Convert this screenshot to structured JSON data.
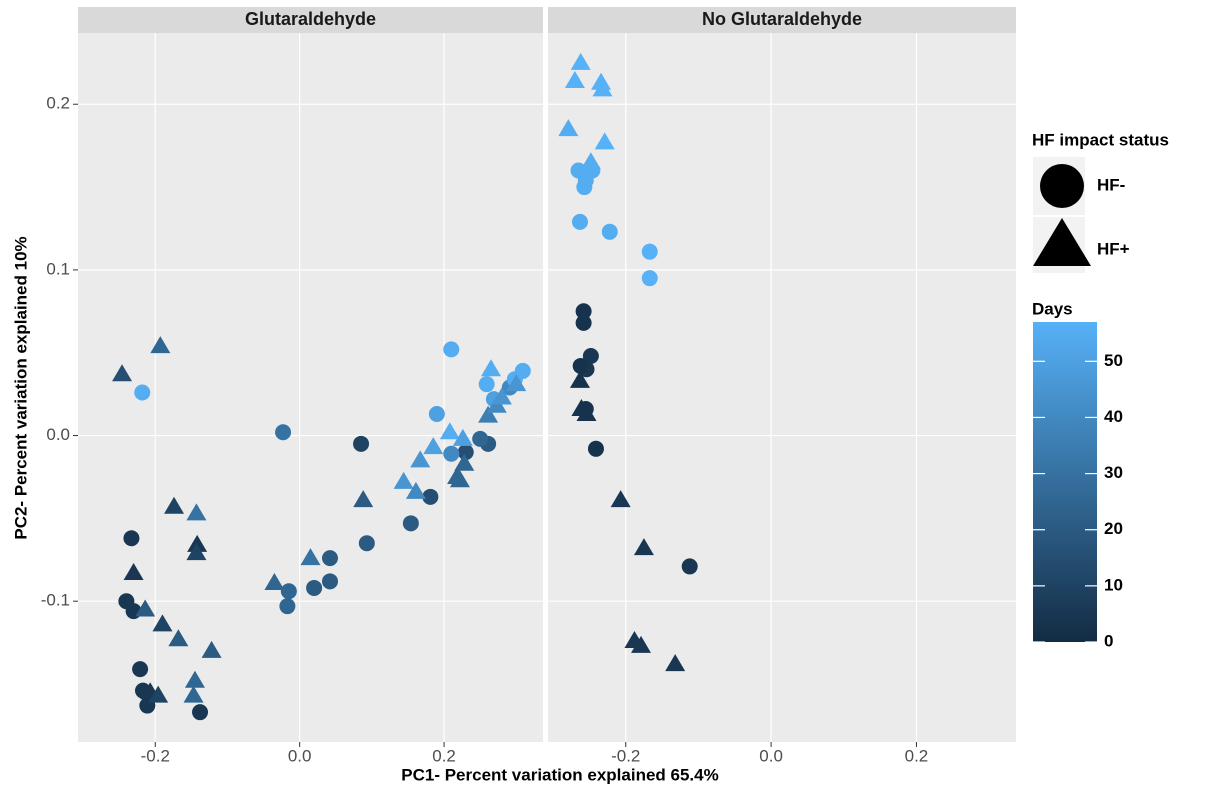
{
  "chart_data": {
    "type": "scatter",
    "xlabel": "PC1- Percent variation explained 65.4%",
    "ylabel": "PC2- Percent variation explained 10%",
    "xlim": [
      -0.307,
      0.337
    ],
    "ylim": [
      -0.185,
      0.243
    ],
    "xticks": [
      -0.2,
      {
        "value": 0,
        "label": "0.0"
      },
      0.2
    ],
    "yticks": [
      -0.1,
      {
        "value": 0,
        "label": "0.0"
      },
      0.1,
      0.2
    ],
    "grid": true,
    "legend_title": "HF impact status",
    "colorbar": {
      "title": "Days",
      "limits": [
        0,
        57
      ],
      "ticks": [
        0,
        10,
        20,
        30,
        40,
        50
      ],
      "low_color": "#132B43",
      "high_color": "#56B1F7"
    },
    "facets": [
      {
        "title": "Glutaraldehyde",
        "series": [
          {
            "name": "HF-",
            "marker": "circle",
            "x": [
              -0.218,
              -0.023,
              0.21,
              0.19,
              0.085,
              -0.233,
              -0.24,
              -0.23,
              -0.221,
              -0.217,
              -0.211,
              -0.138,
              -0.015,
              -0.017,
              0.02,
              0.042,
              0.042,
              0.093,
              0.154,
              0.181,
              0.23,
              0.261,
              0.25,
              0.259,
              0.269,
              0.291,
              0.309,
              0.298,
              0.21
            ],
            "y": [
              0.026,
              0.002,
              0.052,
              0.013,
              -0.005,
              -0.062,
              -0.1,
              -0.106,
              -0.141,
              -0.154,
              -0.163,
              -0.167,
              -0.094,
              -0.103,
              -0.092,
              -0.074,
              -0.088,
              -0.065,
              -0.053,
              -0.037,
              -0.01,
              -0.005,
              -0.002,
              0.031,
              0.022,
              0.029,
              0.039,
              0.034,
              -0.011
            ],
            "days": [
              55,
              30,
              55,
              50,
              10,
              5,
              5,
              5,
              5,
              5,
              5,
              5,
              25,
              25,
              20,
              20,
              20,
              20,
              20,
              15,
              15,
              20,
              25,
              55,
              50,
              40,
              55,
              55,
              40
            ]
          },
          {
            "name": "HF+",
            "marker": "triangle",
            "x": [
              -0.246,
              -0.193,
              -0.174,
              -0.143,
              -0.142,
              -0.143,
              -0.23,
              -0.214,
              -0.19,
              -0.168,
              -0.122,
              -0.145,
              -0.147,
              -0.207,
              -0.196,
              -0.035,
              0.015,
              0.088,
              0.144,
              0.161,
              0.167,
              0.185,
              0.208,
              0.226,
              0.218,
              0.222,
              0.228,
              0.265,
              0.261,
              0.273,
              0.28,
              0.3
            ],
            "y": [
              0.037,
              0.054,
              -0.043,
              -0.047,
              -0.066,
              -0.071,
              -0.083,
              -0.105,
              -0.114,
              -0.123,
              -0.13,
              -0.148,
              -0.157,
              -0.155,
              -0.157,
              -0.089,
              -0.074,
              -0.039,
              -0.028,
              -0.034,
              -0.015,
              -0.007,
              0.002,
              -0.002,
              -0.025,
              -0.027,
              -0.017,
              0.04,
              0.012,
              0.018,
              0.023,
              0.031
            ],
            "days": [
              15,
              25,
              10,
              30,
              5,
              10,
              5,
              20,
              10,
              20,
              20,
              25,
              25,
              5,
              10,
              25,
              30,
              20,
              45,
              40,
              45,
              50,
              55,
              50,
              25,
              25,
              25,
              55,
              35,
              40,
              45,
              45
            ]
          }
        ]
      },
      {
        "title": "No Glutaraldehyde",
        "series": [
          {
            "name": "HF-",
            "marker": "circle",
            "x": [
              -0.265,
              -0.257,
              -0.255,
              -0.246,
              -0.263,
              -0.222,
              -0.167,
              -0.167,
              -0.258,
              -0.258,
              -0.248,
              -0.254,
              -0.262,
              -0.255,
              -0.241,
              -0.112
            ],
            "y": [
              0.16,
              0.15,
              0.154,
              0.16,
              0.129,
              0.123,
              0.111,
              0.095,
              0.075,
              0.068,
              0.048,
              0.04,
              0.042,
              0.016,
              -0.008,
              -0.079
            ],
            "days": [
              55,
              55,
              55,
              55,
              55,
              55,
              57,
              57,
              3,
              3,
              5,
              5,
              3,
              3,
              3,
              5
            ]
          },
          {
            "name": "HF+",
            "marker": "triangle",
            "x": [
              -0.262,
              -0.27,
              -0.234,
              -0.232,
              -0.279,
              -0.229,
              -0.248,
              -0.263,
              -0.261,
              -0.254,
              -0.207,
              -0.175,
              -0.188,
              -0.179,
              -0.132
            ],
            "y": [
              0.225,
              0.214,
              0.213,
              0.209,
              0.185,
              0.177,
              0.165,
              0.033,
              0.016,
              0.013,
              -0.039,
              -0.068,
              -0.124,
              -0.127,
              -0.138
            ],
            "days": [
              57,
              57,
              57,
              57,
              55,
              57,
              55,
              3,
              3,
              3,
              5,
              5,
              5,
              5,
              5
            ]
          }
        ]
      }
    ]
  }
}
